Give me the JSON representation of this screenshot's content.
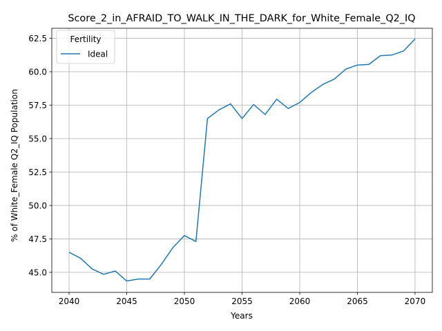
{
  "chart_data": {
    "type": "line",
    "title": "Score_2_in_AFRAID_TO_WALK_IN_THE_DARK_for_White_Female_Q2_IQ",
    "xlabel": "Years",
    "ylabel": "% of White_Female Q2_IQ Population",
    "xlim": [
      2038.5,
      2071.5
    ],
    "ylim": [
      43.5,
      63.25
    ],
    "xticks": [
      2040,
      2045,
      2050,
      2055,
      2060,
      2065,
      2070
    ],
    "xtick_labels": [
      "2040",
      "2045",
      "2050",
      "2055",
      "2060",
      "2065",
      "2070"
    ],
    "yticks": [
      45.0,
      47.5,
      50.0,
      52.5,
      55.0,
      57.5,
      60.0,
      62.5
    ],
    "ytick_labels": [
      "45.0",
      "47.5",
      "50.0",
      "52.5",
      "55.0",
      "57.5",
      "60.0",
      "62.5"
    ],
    "grid": true,
    "legend": {
      "title": "Fertility",
      "placement": "top-left"
    },
    "x": [
      2040,
      2041,
      2042,
      2043,
      2044,
      2045,
      2046,
      2047,
      2048,
      2049,
      2050,
      2051,
      2052,
      2053,
      2054,
      2055,
      2056,
      2057,
      2058,
      2059,
      2060,
      2061,
      2062,
      2063,
      2064,
      2065,
      2066,
      2067,
      2068,
      2069,
      2070
    ],
    "series": [
      {
        "name": "Ideal",
        "color": "#1f77b4",
        "values": [
          46.5,
          46.05,
          45.25,
          44.85,
          45.1,
          44.35,
          44.5,
          44.5,
          45.6,
          46.85,
          47.75,
          47.3,
          56.5,
          57.15,
          57.6,
          56.5,
          57.55,
          56.8,
          57.95,
          57.25,
          57.7,
          58.45,
          59.05,
          59.45,
          60.2,
          60.5,
          60.55,
          61.2,
          61.25,
          61.55,
          62.45
        ]
      }
    ]
  }
}
